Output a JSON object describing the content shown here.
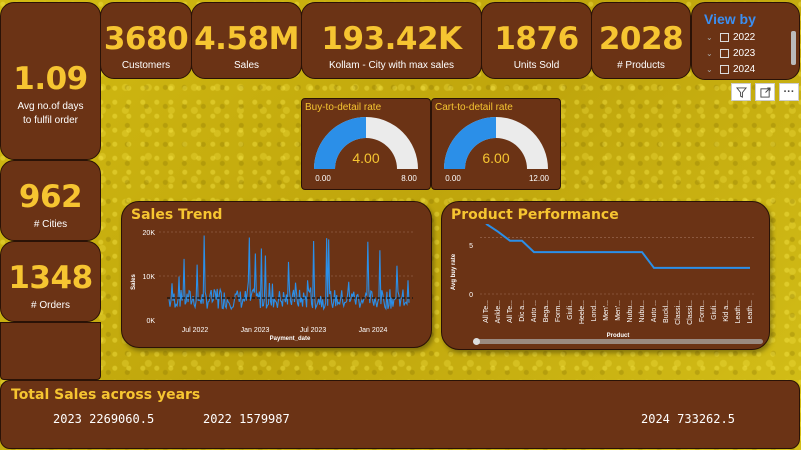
{
  "colors": {
    "card_bg": "#6b3315",
    "accent": "#f6c531",
    "series": "#2b8fe8",
    "page_bg": "#c9b20e"
  },
  "kpis": {
    "customers": {
      "value": "3680",
      "label": "Customers"
    },
    "sales": {
      "value": "4.58M",
      "label": "Sales"
    },
    "city": {
      "value": "193.42K",
      "label": "Kollam - City with max sales"
    },
    "units": {
      "value": "1876",
      "label": "Units Sold"
    },
    "products": {
      "value": "2028",
      "label": "# Products"
    },
    "avg_days": {
      "value": "1.09",
      "label_line1": "Avg no.of days",
      "label_line2": "to fulfil order"
    },
    "cities": {
      "value": "962",
      "label": "# Cities"
    },
    "orders": {
      "value": "1348",
      "label": "# Orders"
    }
  },
  "slicer": {
    "title": "View by",
    "items": [
      {
        "label": "2022"
      },
      {
        "label": "2023"
      },
      {
        "label": "2024"
      }
    ],
    "icons": [
      "chevron-down-icon",
      "checkbox-icon"
    ]
  },
  "toolbar": {
    "icons": [
      "filter-icon",
      "focus-mode-icon",
      "more-options-icon"
    ],
    "more_label": "···"
  },
  "gauges": [
    {
      "title": "Buy-to-detail rate",
      "value": 4.0,
      "value_label": "4.00",
      "min_label": "0.00",
      "max_label": "8.00",
      "min": 0,
      "max": 8
    },
    {
      "title": "Cart-to-detail rate",
      "value": 6.0,
      "value_label": "6.00",
      "min_label": "0.00",
      "max_label": "12.00",
      "min": 0,
      "max": 12
    }
  ],
  "sales_trend": {
    "title": "Sales Trend",
    "chart_data": {
      "type": "line",
      "xlabel": "Payment_date",
      "ylabel": "Sales",
      "ylim": [
        0,
        20000
      ],
      "y_ticks": [
        "0K",
        "10K",
        "20K"
      ],
      "x_ticks": [
        "Jul 2022",
        "Jan 2023",
        "Jul 2023",
        "Jan 2024"
      ],
      "reference_line": 5000,
      "grid": true
    }
  },
  "product_performance": {
    "title": "Product Performance",
    "chart_data": {
      "type": "line",
      "xlabel": "Product",
      "ylabel": "Avg buy rate",
      "ylim": [
        0,
        6
      ],
      "y_ticks": [
        "0",
        "5"
      ],
      "categories": [
        "All Te...",
        "Ankle...",
        "All Te...",
        "Dic a...",
        "Auto ...",
        "Bega...",
        "Form...",
        "Giuli...",
        "Heele...",
        "Lond...",
        "Men'...",
        "Men'...",
        "Nubu...",
        "Nubu...",
        "Auto ...",
        "Buckl...",
        "Classi...",
        "Classi...",
        "Form...",
        "Giuli...",
        "Kid a...",
        "Leath...",
        "Leath..."
      ],
      "values": [
        6.2,
        5.5,
        4.7,
        4.7,
        3.7,
        3.7,
        3.7,
        3.7,
        3.7,
        3.7,
        3.7,
        3.7,
        3.7,
        3.7,
        2.3,
        2.3,
        2.3,
        2.3,
        2.3,
        2.3,
        2.3,
        2.3,
        2.3
      ],
      "grid": true
    }
  },
  "total_sales": {
    "title": "Total Sales across years",
    "entries": [
      {
        "year": "2023",
        "value": "2269060.5"
      },
      {
        "year": "2022",
        "value": "1579987"
      },
      {
        "year": "2024",
        "value": "733262.5"
      }
    ]
  }
}
